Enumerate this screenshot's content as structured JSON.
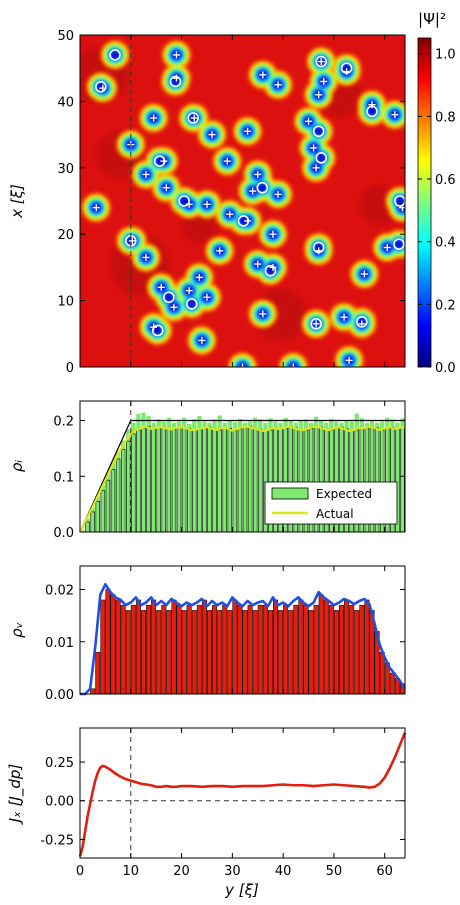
{
  "chart_data": [
    {
      "type": "heatmap",
      "xlabel": "x [ξ]",
      "x_range": [
        0,
        64
      ],
      "y_range": [
        0,
        50
      ],
      "yticks": [
        0,
        10,
        20,
        30,
        40,
        50
      ],
      "dashed_vline_y": 10,
      "colorbar": {
        "label": "|Ψ|²",
        "range": [
          0.0,
          1.05
        ],
        "ticks": [
          "0.0",
          "0.2",
          "0.4",
          "0.6",
          "0.8",
          "1.0"
        ],
        "colormap": "jet",
        "stops": [
          "#00007f",
          "#0000ff",
          "#007fff",
          "#00ffff",
          "#7fff7f",
          "#ffff00",
          "#ff7f00",
          "#ff0000",
          "#7f0000"
        ]
      },
      "background_colors": [
        "#dd1010",
        "#b80808",
        "#ff2a00"
      ],
      "vortex_ring_markers": [
        [
          47,
          6.9
        ],
        [
          42.2,
          4.1
        ],
        [
          43,
          18.8
        ],
        [
          37.5,
          22.3
        ],
        [
          45,
          52.5
        ],
        [
          46,
          47.5
        ],
        [
          38.5,
          57.5
        ],
        [
          35.5,
          47
        ],
        [
          31.5,
          47.5
        ],
        [
          31,
          15.7
        ],
        [
          27,
          35.9
        ],
        [
          25,
          20.5
        ],
        [
          22,
          32.2
        ],
        [
          25,
          63
        ],
        [
          19,
          10
        ],
        [
          18,
          47
        ],
        [
          18.5,
          62.8
        ],
        [
          14.5,
          37.5
        ],
        [
          10.5,
          17.5
        ],
        [
          9.5,
          22
        ],
        [
          6.5,
          46.5
        ],
        [
          6.8,
          55.5
        ],
        [
          5.5,
          15.3
        ]
      ],
      "vortex_plus_markers": [
        [
          46,
          47.5
        ],
        [
          44.5,
          52.5
        ],
        [
          42,
          4.5
        ],
        [
          43.5,
          19
        ],
        [
          47,
          19
        ],
        [
          37.5,
          22.5
        ],
        [
          37.5,
          14.5
        ],
        [
          33.5,
          10
        ],
        [
          35,
          26
        ],
        [
          35.5,
          33
        ],
        [
          31,
          29
        ],
        [
          29,
          35
        ],
        [
          31,
          16.5
        ],
        [
          29,
          13
        ],
        [
          24.5,
          21.5
        ],
        [
          27,
          17
        ],
        [
          24.5,
          25
        ],
        [
          23,
          29.5
        ],
        [
          22,
          33
        ],
        [
          20,
          38
        ],
        [
          26.5,
          34
        ],
        [
          26,
          39
        ],
        [
          24,
          63.5
        ],
        [
          24,
          3.2
        ],
        [
          19,
          10.3
        ],
        [
          17.5,
          27.5
        ],
        [
          16.5,
          13
        ],
        [
          15.5,
          35
        ],
        [
          17.5,
          47
        ],
        [
          15,
          38
        ],
        [
          13.5,
          23.5
        ],
        [
          12,
          16
        ],
        [
          11.5,
          21.5
        ],
        [
          10.5,
          25
        ],
        [
          9,
          18.5
        ],
        [
          6,
          14.5
        ],
        [
          6.5,
          46.5
        ],
        [
          7.5,
          52
        ],
        [
          6.5,
          55.5
        ],
        [
          4,
          24
        ],
        [
          0,
          32
        ],
        [
          0,
          42
        ],
        [
          1,
          53
        ],
        [
          39.5,
          57.5
        ],
        [
          38,
          62
        ],
        [
          41,
          47
        ],
        [
          43,
          48
        ],
        [
          30,
          46.5
        ],
        [
          33,
          46
        ],
        [
          37,
          45
        ],
        [
          18,
          60.5
        ],
        [
          14,
          56
        ],
        [
          42.5,
          39
        ],
        [
          44,
          36
        ],
        [
          8,
          36
        ]
      ]
    },
    {
      "type": "bar",
      "ylabel": "ρᵢ",
      "x_range": [
        0,
        64
      ],
      "ylim": [
        0,
        0.235
      ],
      "yticks": [
        "0.0",
        "0.1",
        "0.2"
      ],
      "dashed_vline_y": 10,
      "bar_width": 1,
      "colors": {
        "bar": "#88e878",
        "expected": "#7fe870",
        "actual": "#d8e81a",
        "line": "#000000"
      },
      "legend": [
        "Expected",
        "Actual"
      ],
      "legend_position": "lower-right",
      "black_line": [
        [
          0,
          0
        ],
        [
          10,
          0.2
        ],
        [
          64,
          0.2
        ]
      ],
      "actual_curve": [
        [
          0,
          0
        ],
        [
          1,
          0.018
        ],
        [
          2,
          0.036
        ],
        [
          3,
          0.055
        ],
        [
          4,
          0.074
        ],
        [
          5,
          0.093
        ],
        [
          6,
          0.112
        ],
        [
          7,
          0.131
        ],
        [
          8,
          0.148
        ],
        [
          9,
          0.163
        ],
        [
          10,
          0.176
        ],
        [
          11,
          0.183
        ],
        [
          12,
          0.186
        ],
        [
          13,
          0.189
        ],
        [
          14,
          0.185
        ],
        [
          15,
          0.187
        ],
        [
          16,
          0.188
        ],
        [
          17,
          0.186
        ],
        [
          18,
          0.184
        ],
        [
          19,
          0.187
        ],
        [
          20,
          0.188
        ],
        [
          21,
          0.186
        ],
        [
          22,
          0.183
        ],
        [
          23,
          0.184
        ],
        [
          24,
          0.186
        ],
        [
          25,
          0.188
        ],
        [
          26,
          0.185
        ],
        [
          27,
          0.183
        ],
        [
          28,
          0.187
        ],
        [
          29,
          0.186
        ],
        [
          30,
          0.182
        ],
        [
          31,
          0.185
        ],
        [
          32,
          0.188
        ],
        [
          33,
          0.189
        ],
        [
          34,
          0.186
        ],
        [
          35,
          0.184
        ],
        [
          36,
          0.181
        ],
        [
          37,
          0.183
        ],
        [
          38,
          0.187
        ],
        [
          39,
          0.185
        ],
        [
          40,
          0.186
        ],
        [
          41,
          0.189
        ],
        [
          42,
          0.187
        ],
        [
          43,
          0.184
        ],
        [
          44,
          0.183
        ],
        [
          45,
          0.186
        ],
        [
          46,
          0.189
        ],
        [
          47,
          0.188
        ],
        [
          48,
          0.185
        ],
        [
          49,
          0.183
        ],
        [
          50,
          0.186
        ],
        [
          51,
          0.188
        ],
        [
          52,
          0.185
        ],
        [
          53,
          0.181
        ],
        [
          54,
          0.183
        ],
        [
          55,
          0.187
        ],
        [
          56,
          0.186
        ],
        [
          57,
          0.189
        ],
        [
          58,
          0.187
        ],
        [
          59,
          0.183
        ],
        [
          60,
          0.186
        ],
        [
          61,
          0.188
        ],
        [
          62,
          0.185
        ],
        [
          63,
          0.187
        ],
        [
          64,
          0.188
        ]
      ],
      "expected_bars": [
        0.004,
        0.024,
        0.044,
        0.064,
        0.084,
        0.104,
        0.124,
        0.144,
        0.164,
        0.184,
        0.196,
        0.212,
        0.214,
        0.208,
        0.196,
        0.202,
        0.198,
        0.205,
        0.196,
        0.198,
        0.205,
        0.194,
        0.202,
        0.208,
        0.198,
        0.196,
        0.202,
        0.209,
        0.196,
        0.201,
        0.197,
        0.203,
        0.196,
        0.198,
        0.205,
        0.202,
        0.196,
        0.204,
        0.198,
        0.196,
        0.205,
        0.201,
        0.196,
        0.199,
        0.202,
        0.196,
        0.207,
        0.201,
        0.196,
        0.203,
        0.198,
        0.196,
        0.201,
        0.198,
        0.212,
        0.204,
        0.196,
        0.201,
        0.196,
        0.198,
        0.205,
        0.202,
        0.196,
        0.204
      ]
    },
    {
      "type": "bar",
      "ylabel": "ρᵥ",
      "x_range": [
        0,
        64
      ],
      "ylim": [
        0,
        0.0245
      ],
      "yticks": [
        "0.00",
        "0.01",
        "0.02"
      ],
      "colors": {
        "bar": "#e02010",
        "line": "#1f4fe0"
      },
      "bar_values": [
        0.0,
        0.0,
        0.001,
        0.008,
        0.018,
        0.02,
        0.019,
        0.018,
        0.017,
        0.016,
        0.017,
        0.018,
        0.016,
        0.017,
        0.018,
        0.016,
        0.017,
        0.016,
        0.018,
        0.017,
        0.016,
        0.017,
        0.016,
        0.017,
        0.018,
        0.016,
        0.017,
        0.016,
        0.017,
        0.016,
        0.018,
        0.017,
        0.016,
        0.017,
        0.016,
        0.017,
        0.017,
        0.016,
        0.018,
        0.016,
        0.017,
        0.016,
        0.017,
        0.018,
        0.017,
        0.016,
        0.017,
        0.019,
        0.018,
        0.017,
        0.016,
        0.017,
        0.018,
        0.017,
        0.016,
        0.017,
        0.018,
        0.016,
        0.012,
        0.008,
        0.006,
        0.004,
        0.003,
        0.002
      ],
      "envelope_curve": [
        [
          0,
          0
        ],
        [
          1,
          0.0
        ],
        [
          2,
          0.001
        ],
        [
          3,
          0.009
        ],
        [
          4,
          0.019
        ],
        [
          5,
          0.021
        ],
        [
          6,
          0.0195
        ],
        [
          7,
          0.0185
        ],
        [
          8,
          0.018
        ],
        [
          9,
          0.017
        ],
        [
          10,
          0.0175
        ],
        [
          11,
          0.0185
        ],
        [
          12,
          0.017
        ],
        [
          13,
          0.0175
        ],
        [
          14,
          0.0185
        ],
        [
          15,
          0.017
        ],
        [
          16,
          0.0178
        ],
        [
          17,
          0.017
        ],
        [
          18,
          0.0182
        ],
        [
          19,
          0.0175
        ],
        [
          20,
          0.0168
        ],
        [
          21,
          0.0175
        ],
        [
          22,
          0.017
        ],
        [
          23,
          0.0175
        ],
        [
          24,
          0.0182
        ],
        [
          25,
          0.0168
        ],
        [
          26,
          0.0178
        ],
        [
          27,
          0.017
        ],
        [
          28,
          0.0175
        ],
        [
          29,
          0.0168
        ],
        [
          30,
          0.0185
        ],
        [
          31,
          0.0175
        ],
        [
          32,
          0.0168
        ],
        [
          33,
          0.0178
        ],
        [
          34,
          0.017
        ],
        [
          35,
          0.0175
        ],
        [
          36,
          0.0178
        ],
        [
          37,
          0.0168
        ],
        [
          38,
          0.0185
        ],
        [
          39,
          0.017
        ],
        [
          40,
          0.0175
        ],
        [
          41,
          0.0168
        ],
        [
          42,
          0.0178
        ],
        [
          43,
          0.0185
        ],
        [
          44,
          0.0175
        ],
        [
          45,
          0.0168
        ],
        [
          46,
          0.0175
        ],
        [
          47,
          0.0195
        ],
        [
          48,
          0.0185
        ],
        [
          49,
          0.0178
        ],
        [
          50,
          0.017
        ],
        [
          51,
          0.0175
        ],
        [
          52,
          0.0182
        ],
        [
          53,
          0.0178
        ],
        [
          54,
          0.0172
        ],
        [
          55,
          0.0178
        ],
        [
          56,
          0.0182
        ],
        [
          57,
          0.0172
        ],
        [
          58,
          0.0135
        ],
        [
          59,
          0.0095
        ],
        [
          60,
          0.007
        ],
        [
          61,
          0.005
        ],
        [
          62,
          0.0038
        ],
        [
          63,
          0.0025
        ],
        [
          64,
          0.001
        ]
      ]
    },
    {
      "type": "line",
      "ylabel": "Jₓ [J_dp]",
      "xlabel": "y [ξ]",
      "x_range": [
        0,
        64
      ],
      "ylim": [
        -0.37,
        0.47
      ],
      "xticks": [
        "0",
        "10",
        "20",
        "30",
        "40",
        "50",
        "60"
      ],
      "yticks": [
        "-0.25",
        "0.00",
        "0.25"
      ],
      "dashed_vline_y": 10,
      "dashed_hline": 0.0,
      "colors": {
        "line": "#dd2010"
      },
      "curve": [
        [
          0,
          -0.36
        ],
        [
          0.5,
          -0.3
        ],
        [
          1,
          -0.2
        ],
        [
          1.5,
          -0.1
        ],
        [
          2,
          -0.02
        ],
        [
          2.5,
          0.06
        ],
        [
          3,
          0.13
        ],
        [
          3.5,
          0.18
        ],
        [
          4,
          0.215
        ],
        [
          4.5,
          0.225
        ],
        [
          5,
          0.22
        ],
        [
          6,
          0.2
        ],
        [
          7,
          0.175
        ],
        [
          8,
          0.155
        ],
        [
          9,
          0.14
        ],
        [
          10,
          0.13
        ],
        [
          11,
          0.12
        ],
        [
          12,
          0.11
        ],
        [
          13,
          0.105
        ],
        [
          14,
          0.1
        ],
        [
          15,
          0.09
        ],
        [
          16,
          0.09
        ],
        [
          17,
          0.095
        ],
        [
          18,
          0.09
        ],
        [
          19,
          0.09
        ],
        [
          20,
          0.095
        ],
        [
          22,
          0.095
        ],
        [
          24,
          0.09
        ],
        [
          26,
          0.095
        ],
        [
          28,
          0.095
        ],
        [
          30,
          0.09
        ],
        [
          32,
          0.095
        ],
        [
          34,
          0.095
        ],
        [
          36,
          0.095
        ],
        [
          38,
          0.1
        ],
        [
          40,
          0.105
        ],
        [
          42,
          0.1
        ],
        [
          44,
          0.1
        ],
        [
          46,
          0.095
        ],
        [
          48,
          0.1
        ],
        [
          50,
          0.105
        ],
        [
          52,
          0.1
        ],
        [
          54,
          0.095
        ],
        [
          56,
          0.09
        ],
        [
          57,
          0.085
        ],
        [
          58,
          0.09
        ],
        [
          59,
          0.11
        ],
        [
          60,
          0.15
        ],
        [
          61,
          0.21
        ],
        [
          62,
          0.28
        ],
        [
          63,
          0.36
        ],
        [
          64,
          0.44
        ]
      ]
    }
  ]
}
